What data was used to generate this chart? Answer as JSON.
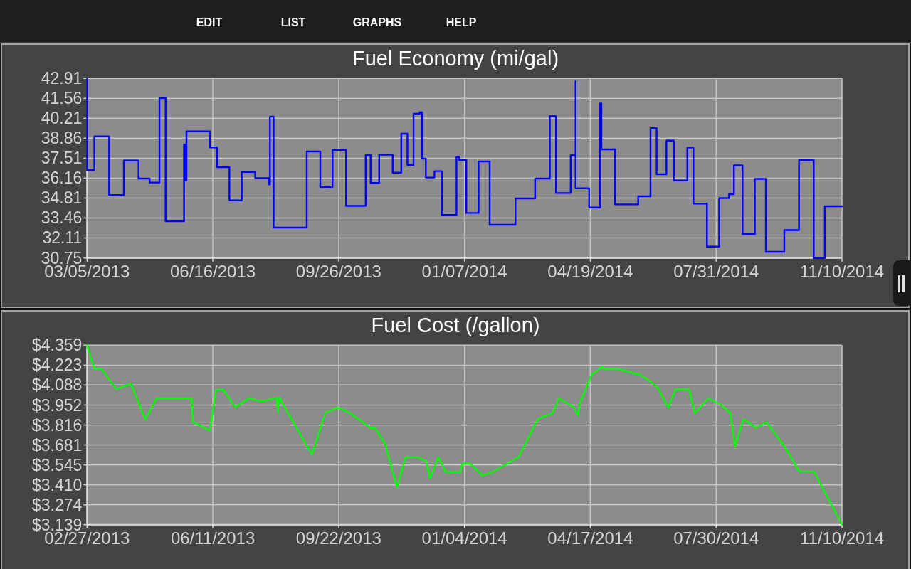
{
  "chart_data": [
    {
      "type": "other",
      "annotations": [
        "EDIT",
        "LIST",
        "GRAPHS",
        "HELP"
      ]
    },
    {
      "type": "step",
      "title": "Fuel Economy (mi/gal)",
      "x": [
        "2013-03-05",
        "2013-03-05",
        "2013-03-11",
        "2013-03-23",
        "2013-04-04",
        "2013-04-16",
        "2013-04-25",
        "2013-05-03",
        "2013-05-08",
        "2013-05-23",
        "2013-05-24",
        "2013-05-25",
        "2013-06-13",
        "2013-06-19",
        "2013-06-29",
        "2013-07-09",
        "2013-07-20",
        "2013-07-31",
        "2013-08-01",
        "2013-08-04",
        "2013-08-31",
        "2013-09-11",
        "2013-09-21",
        "2013-10-02",
        "2013-10-18",
        "2013-10-22",
        "2013-10-29",
        "2013-11-09",
        "2013-11-16",
        "2013-11-21",
        "2013-11-26",
        "2013-12-01",
        "2013-12-03",
        "2013-12-06",
        "2013-12-13",
        "2013-12-19",
        "2013-12-31",
        "2014-01-02",
        "2014-01-08",
        "2014-01-18",
        "2014-01-27",
        "2014-02-17",
        "2014-03-05",
        "2014-03-17",
        "2014-03-22",
        "2014-04-03",
        "2014-04-07",
        "2014-04-07",
        "2014-04-18",
        "2014-04-27",
        "2014-04-28",
        "2014-05-09",
        "2014-05-28",
        "2014-06-07",
        "2014-06-12",
        "2014-06-20",
        "2014-06-26",
        "2014-07-07",
        "2014-07-12",
        "2014-07-23",
        "2014-08-02",
        "2014-08-10",
        "2014-08-14",
        "2014-08-21",
        "2014-08-31",
        "2014-09-09",
        "2014-09-24",
        "2014-10-06",
        "2014-10-18",
        "2014-10-27",
        "2014-11-10"
      ],
      "values": [
        42.91,
        36.71,
        38.99,
        35.01,
        37.35,
        36.13,
        35.86,
        41.59,
        33.24,
        38.43,
        36.02,
        39.33,
        38.24,
        36.9,
        34.65,
        36.58,
        36.16,
        35.73,
        40.32,
        32.81,
        37.96,
        35.54,
        38.07,
        34.28,
        37.72,
        35.83,
        37.74,
        36.53,
        39.17,
        37.06,
        40.52,
        40.61,
        37.48,
        36.2,
        36.63,
        33.67,
        37.62,
        37.38,
        33.8,
        37.29,
        33.0,
        34.78,
        36.13,
        40.36,
        35.15,
        37.71,
        42.73,
        35.47,
        34.17,
        41.22,
        38.11,
        34.38,
        34.93,
        39.54,
        36.42,
        38.7,
        36.0,
        38.22,
        34.43,
        31.52,
        34.81,
        35.07,
        37.03,
        32.36,
        36.11,
        31.17,
        32.64,
        37.38,
        30.75,
        34.25,
        34.25
      ],
      "color": "#0000ff",
      "xlim": [
        "2013-03-05",
        "2014-11-10"
      ],
      "xticks": [
        {
          "value": "2013-03-05",
          "label": "03/05/2013"
        },
        {
          "value": "2013-06-15T12:00",
          "label": "06/16/2013"
        },
        {
          "value": "2013-09-26",
          "label": "09/26/2013"
        },
        {
          "value": "2014-01-06T12:00",
          "label": "01/07/2014"
        },
        {
          "value": "2014-04-19",
          "label": "04/19/2014"
        },
        {
          "value": "2014-07-30T12:00",
          "label": "07/31/2014"
        },
        {
          "value": "2014-11-10",
          "label": "11/10/2014"
        }
      ],
      "ylim": [
        30.75,
        42.91
      ],
      "yticks": [
        30.75,
        32.11,
        33.46,
        34.81,
        36.16,
        37.51,
        38.86,
        40.21,
        41.56,
        42.91
      ],
      "grid": true
    },
    {
      "type": "line",
      "title": "Fuel Cost (/gallon)",
      "x": [
        "2013-02-27",
        "2013-03-05",
        "2013-03-11",
        "2013-03-23",
        "2013-04-04",
        "2013-04-16",
        "2013-04-25",
        "2013-05-24",
        "2013-05-25",
        "2013-06-08",
        "2013-06-13",
        "2013-06-19",
        "2013-06-29",
        "2013-07-10",
        "2013-07-21",
        "2013-08-02",
        "2013-08-03",
        "2013-08-04",
        "2013-08-31",
        "2013-09-11",
        "2013-09-21",
        "2013-10-01",
        "2013-10-18",
        "2013-10-22",
        "2013-10-30",
        "2013-11-09",
        "2013-11-16",
        "2013-11-26",
        "2013-12-01",
        "2013-12-03",
        "2013-12-06",
        "2013-12-13",
        "2013-12-19",
        "2013-12-31",
        "2014-01-02",
        "2014-01-08",
        "2014-01-18",
        "2014-01-27",
        "2014-02-17",
        "2014-03-05",
        "2014-03-17",
        "2014-03-22",
        "2014-04-03",
        "2014-04-07",
        "2014-04-08",
        "2014-04-18",
        "2014-04-27",
        "2014-04-28",
        "2014-05-10",
        "2014-05-28",
        "2014-06-07",
        "2014-06-12",
        "2014-06-20",
        "2014-06-26",
        "2014-07-07",
        "2014-07-12",
        "2014-07-23",
        "2014-08-02",
        "2014-08-10",
        "2014-08-14",
        "2014-08-21",
        "2014-08-31",
        "2014-09-09",
        "2014-09-24",
        "2014-10-06",
        "2014-10-18",
        "2014-11-10"
      ],
      "values": [
        4.359,
        4.198,
        4.198,
        4.06,
        4.098,
        3.854,
        3.998,
        3.998,
        3.838,
        3.78,
        4.055,
        4.057,
        3.937,
        3.998,
        3.978,
        4.002,
        3.902,
        4.005,
        3.615,
        3.9,
        3.936,
        3.9,
        3.797,
        3.797,
        3.691,
        3.393,
        3.599,
        3.599,
        3.578,
        3.575,
        3.454,
        3.599,
        3.498,
        3.498,
        3.557,
        3.555,
        3.475,
        3.5,
        3.599,
        3.86,
        3.897,
        3.998,
        3.941,
        3.881,
        3.957,
        4.159,
        4.216,
        4.196,
        4.196,
        4.159,
        4.103,
        4.063,
        3.934,
        4.058,
        4.058,
        3.897,
        3.998,
        3.957,
        3.9,
        3.67,
        3.857,
        3.799,
        3.836,
        3.667,
        3.5,
        3.5,
        3.139
      ],
      "color": "#00ff00",
      "xlim": [
        "2013-02-27",
        "2014-11-10"
      ],
      "xticks": [
        {
          "value": "2013-02-27",
          "label": "02/27/2013"
        },
        {
          "value": "2013-06-10T12:00",
          "label": "06/11/2013"
        },
        {
          "value": "2013-09-22",
          "label": "09/22/2013"
        },
        {
          "value": "2014-01-03T12:00",
          "label": "01/04/2014"
        },
        {
          "value": "2014-04-17",
          "label": "04/17/2014"
        },
        {
          "value": "2014-07-29T12:00",
          "label": "07/30/2014"
        },
        {
          "value": "2014-11-10",
          "label": "11/10/2014"
        }
      ],
      "ylim": [
        3.139,
        4.359
      ],
      "yticks": [
        {
          "value": 3.139,
          "label": "$3.139"
        },
        {
          "value": 3.274,
          "label": "$3.274"
        },
        {
          "value": 3.41,
          "label": "$3.410"
        },
        {
          "value": 3.545,
          "label": "$3.545"
        },
        {
          "value": 3.681,
          "label": "$3.681"
        },
        {
          "value": 3.816,
          "label": "$3.816"
        },
        {
          "value": 3.952,
          "label": "$3.952"
        },
        {
          "value": 4.088,
          "label": "$4.088"
        },
        {
          "value": 4.223,
          "label": "$4.223"
        },
        {
          "value": 4.359,
          "label": "$4.359"
        }
      ],
      "grid": true
    }
  ]
}
